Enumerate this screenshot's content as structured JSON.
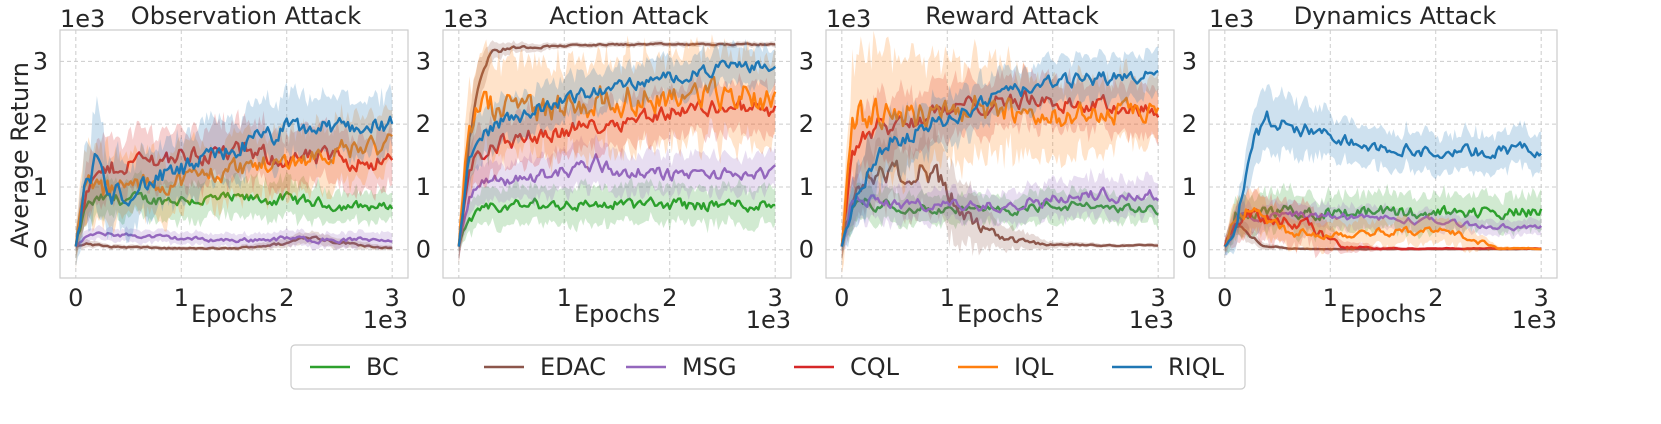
{
  "chart_data": {
    "type": "line",
    "ylabel": "Average Return",
    "xlabel": "Epochs",
    "x_multiplier": "1e3",
    "y_multiplier": "1e3",
    "xlim": [
      -0.15,
      3.15
    ],
    "ylim": [
      -0.45,
      3.5
    ],
    "xticks": [
      0,
      1,
      2,
      3
    ],
    "yticks": [
      0,
      1,
      2,
      3
    ],
    "grid": true,
    "legend": {
      "placement": "bottom-center",
      "entries": [
        "BC",
        "EDAC",
        "MSG",
        "CQL",
        "IQL",
        "RIQL"
      ]
    },
    "colors": {
      "BC": "#2ca02c",
      "EDAC": "#8c564b",
      "MSG": "#9467bd",
      "CQL": "#d62728",
      "IQL": "#ff7f0e",
      "RIQL": "#1f77b4"
    },
    "panels": [
      {
        "title": "Observation Attack",
        "series": [
          {
            "name": "BC",
            "x": [
              0,
              0.1,
              0.25,
              0.5,
              1,
              1.5,
              2,
              2.5,
              3
            ],
            "y": [
              0.05,
              0.7,
              0.8,
              0.8,
              0.8,
              0.8,
              0.8,
              0.7,
              0.68
            ],
            "band": [
              0.18,
              0.28,
              0.3,
              0.3,
              0.3,
              0.3,
              0.3,
              0.25,
              0.22
            ]
          },
          {
            "name": "EDAC",
            "x": [
              0,
              0.1,
              0.3,
              1,
              1.5,
              2,
              2.2,
              2.5,
              3
            ],
            "y": [
              0.05,
              0.1,
              0.05,
              0.02,
              0.02,
              0.1,
              0.22,
              0.12,
              0.02
            ],
            "band": [
              0.05,
              0.06,
              0.04,
              0.03,
              0.03,
              0.08,
              0.1,
              0.08,
              0.03
            ]
          },
          {
            "name": "MSG",
            "x": [
              0,
              0.1,
              0.3,
              1,
              1.5,
              2,
              2.5,
              3
            ],
            "y": [
              0.05,
              0.22,
              0.25,
              0.18,
              0.15,
              0.18,
              0.15,
              0.18
            ],
            "band": [
              0.05,
              0.1,
              0.1,
              0.1,
              0.1,
              0.12,
              0.12,
              0.12
            ]
          },
          {
            "name": "CQL",
            "x": [
              0,
              0.1,
              0.25,
              0.5,
              1,
              1.5,
              2,
              2.5,
              3
            ],
            "y": [
              0.05,
              0.9,
              1.2,
              1.4,
              1.5,
              1.55,
              1.45,
              1.45,
              1.4
            ],
            "band": [
              0.2,
              0.45,
              0.5,
              0.45,
              0.45,
              0.45,
              0.45,
              0.45,
              0.45
            ]
          },
          {
            "name": "IQL",
            "x": [
              0,
              0.1,
              0.25,
              0.5,
              1,
              1.5,
              2,
              2.5,
              3
            ],
            "y": [
              0.05,
              1.2,
              0.9,
              1.0,
              1.1,
              1.3,
              1.4,
              1.6,
              1.65
            ],
            "band": [
              0.3,
              0.6,
              0.6,
              0.5,
              0.5,
              0.5,
              0.5,
              0.5,
              0.5
            ]
          },
          {
            "name": "RIQL",
            "x": [
              0,
              0.1,
              0.2,
              0.3,
              0.5,
              1,
              1.5,
              2,
              2.5,
              3
            ],
            "y": [
              0.05,
              1.05,
              1.5,
              0.8,
              0.95,
              1.25,
              1.6,
              1.9,
              1.95,
              2.0
            ],
            "band": [
              0.3,
              0.65,
              0.8,
              0.6,
              0.5,
              0.5,
              0.5,
              0.5,
              0.45,
              0.45
            ]
          }
        ]
      },
      {
        "title": "Action Attack",
        "series": [
          {
            "name": "BC",
            "x": [
              0,
              0.1,
              0.3,
              0.5,
              1,
              1.5,
              2,
              2.5,
              3
            ],
            "y": [
              0.05,
              0.5,
              0.65,
              0.7,
              0.72,
              0.72,
              0.72,
              0.72,
              0.72
            ],
            "band": [
              0.1,
              0.25,
              0.28,
              0.3,
              0.3,
              0.3,
              0.3,
              0.3,
              0.3
            ]
          },
          {
            "name": "EDAC",
            "x": [
              0,
              0.1,
              0.2,
              0.3,
              0.5,
              1,
              1.5,
              2,
              2.5,
              3
            ],
            "y": [
              0.05,
              1.8,
              2.8,
              3.15,
              3.22,
              3.25,
              3.27,
              3.27,
              3.27,
              3.27
            ],
            "band": [
              0.2,
              0.5,
              0.35,
              0.15,
              0.08,
              0.04,
              0.04,
              0.04,
              0.04,
              0.04
            ]
          },
          {
            "name": "MSG",
            "x": [
              0,
              0.1,
              0.3,
              0.5,
              1,
              1.3,
              1.5,
              2,
              2.5,
              3
            ],
            "y": [
              0.05,
              0.9,
              1.1,
              1.1,
              1.25,
              1.4,
              1.25,
              1.2,
              1.2,
              1.2
            ],
            "band": [
              0.2,
              0.3,
              0.3,
              0.3,
              0.35,
              0.4,
              0.35,
              0.3,
              0.3,
              0.3
            ]
          },
          {
            "name": "CQL",
            "x": [
              0,
              0.1,
              0.25,
              0.5,
              1,
              1.5,
              2,
              2.5,
              3
            ],
            "y": [
              0.05,
              1.35,
              1.6,
              1.75,
              1.9,
              2.05,
              2.2,
              2.3,
              2.2
            ],
            "band": [
              0.25,
              0.45,
              0.45,
              0.4,
              0.4,
              0.4,
              0.4,
              0.4,
              0.4
            ]
          },
          {
            "name": "IQL",
            "x": [
              0,
              0.1,
              0.25,
              0.5,
              1,
              1.5,
              2,
              2.5,
              3
            ],
            "y": [
              0.05,
              2.1,
              2.2,
              2.2,
              2.3,
              2.4,
              2.45,
              2.45,
              2.45
            ],
            "band": [
              0.3,
              0.75,
              0.8,
              0.75,
              0.7,
              0.7,
              0.7,
              0.7,
              0.7
            ]
          },
          {
            "name": "RIQL",
            "x": [
              0,
              0.1,
              0.25,
              0.5,
              1,
              1.5,
              2,
              2.5,
              3
            ],
            "y": [
              0.05,
              1.55,
              1.9,
              2.1,
              2.4,
              2.6,
              2.75,
              2.9,
              2.95
            ],
            "band": [
              0.2,
              0.4,
              0.4,
              0.35,
              0.35,
              0.3,
              0.3,
              0.3,
              0.3
            ]
          }
        ]
      },
      {
        "title": "Reward Attack",
        "series": [
          {
            "name": "BC",
            "x": [
              0,
              0.1,
              0.25,
              0.5,
              1,
              1.5,
              2,
              2.5,
              3
            ],
            "y": [
              0.05,
              0.75,
              0.75,
              0.7,
              0.65,
              0.62,
              0.7,
              0.68,
              0.62
            ],
            "band": [
              0.2,
              0.3,
              0.28,
              0.25,
              0.22,
              0.22,
              0.25,
              0.22,
              0.2
            ]
          },
          {
            "name": "EDAC",
            "x": [
              0,
              0.1,
              0.25,
              0.5,
              0.8,
              1.0,
              1.2,
              1.5,
              2,
              2.5,
              3
            ],
            "y": [
              0.05,
              0.8,
              1.25,
              1.2,
              1.35,
              0.9,
              0.45,
              0.15,
              0.08,
              0.07,
              0.07
            ],
            "band": [
              0.2,
              0.4,
              0.5,
              0.5,
              0.6,
              0.6,
              0.5,
              0.2,
              0.05,
              0.03,
              0.03
            ]
          },
          {
            "name": "MSG",
            "x": [
              0,
              0.1,
              0.25,
              0.5,
              1,
              1.5,
              2,
              2.5,
              3
            ],
            "y": [
              0.05,
              0.85,
              0.8,
              0.72,
              0.7,
              0.72,
              0.8,
              0.9,
              0.85
            ],
            "band": [
              0.2,
              0.35,
              0.3,
              0.3,
              0.25,
              0.25,
              0.3,
              0.3,
              0.3
            ]
          },
          {
            "name": "CQL",
            "x": [
              0,
              0.1,
              0.25,
              0.5,
              1,
              1.5,
              2,
              2.5,
              3
            ],
            "y": [
              0.05,
              1.6,
              1.95,
              2.0,
              2.2,
              2.4,
              2.35,
              2.3,
              2.25
            ],
            "band": [
              0.3,
              0.5,
              0.5,
              0.5,
              0.45,
              0.4,
              0.4,
              0.4,
              0.4
            ]
          },
          {
            "name": "IQL",
            "x": [
              0,
              0.1,
              0.25,
              0.5,
              1,
              1.5,
              2,
              2.5,
              3
            ],
            "y": [
              0.05,
              1.9,
              2.2,
              2.2,
              2.25,
              2.2,
              2.15,
              2.15,
              2.2
            ],
            "band": [
              0.4,
              0.9,
              1.0,
              0.95,
              0.8,
              0.7,
              0.6,
              0.55,
              0.5
            ]
          },
          {
            "name": "RIQL",
            "x": [
              0,
              0.1,
              0.25,
              0.5,
              1,
              1.5,
              2,
              2.5,
              3
            ],
            "y": [
              0.05,
              0.6,
              1.3,
              1.75,
              2.1,
              2.45,
              2.65,
              2.75,
              2.75
            ],
            "band": [
              0.1,
              0.4,
              0.5,
              0.45,
              0.4,
              0.35,
              0.35,
              0.35,
              0.35
            ]
          }
        ]
      },
      {
        "title": "Dynamics Attack",
        "series": [
          {
            "name": "BC",
            "x": [
              0,
              0.1,
              0.25,
              0.5,
              1,
              1.5,
              2,
              2.5,
              3
            ],
            "y": [
              0.05,
              0.55,
              0.58,
              0.6,
              0.6,
              0.6,
              0.6,
              0.6,
              0.6
            ],
            "band": [
              0.15,
              0.28,
              0.3,
              0.3,
              0.3,
              0.3,
              0.3,
              0.28,
              0.28
            ]
          },
          {
            "name": "EDAC",
            "x": [
              0,
              0.1,
              0.2,
              0.35,
              0.6,
              1,
              1.5,
              2,
              2.5,
              3
            ],
            "y": [
              0.05,
              0.35,
              0.3,
              0.08,
              0.02,
              0.01,
              0.01,
              0.01,
              0.01,
              0.01
            ],
            "band": [
              0.05,
              0.15,
              0.15,
              0.05,
              0.02,
              0.01,
              0.01,
              0.01,
              0.01,
              0.01
            ]
          },
          {
            "name": "MSG",
            "x": [
              0,
              0.1,
              0.25,
              0.5,
              1,
              1.5,
              2,
              2.5,
              3
            ],
            "y": [
              0.05,
              0.5,
              0.55,
              0.55,
              0.55,
              0.5,
              0.45,
              0.38,
              0.35
            ],
            "band": [
              0.15,
              0.2,
              0.2,
              0.2,
              0.18,
              0.18,
              0.15,
              0.12,
              0.12
            ]
          },
          {
            "name": "CQL",
            "x": [
              0,
              0.1,
              0.25,
              0.5,
              0.7,
              0.9,
              1.1,
              1.5,
              2,
              2.5,
              3
            ],
            "y": [
              0.05,
              0.45,
              0.55,
              0.5,
              0.45,
              0.25,
              0.05,
              0.02,
              0.02,
              0.02,
              0.02
            ],
            "band": [
              0.1,
              0.3,
              0.35,
              0.35,
              0.35,
              0.3,
              0.1,
              0.03,
              0.02,
              0.02,
              0.02
            ]
          },
          {
            "name": "IQL",
            "x": [
              0,
              0.1,
              0.25,
              0.4,
              0.6,
              1.0,
              1.5,
              2.0,
              2.3,
              2.6,
              3
            ],
            "y": [
              0.05,
              0.5,
              0.7,
              0.45,
              0.3,
              0.25,
              0.3,
              0.3,
              0.2,
              0.02,
              0.02
            ],
            "band": [
              0.1,
              0.3,
              0.35,
              0.3,
              0.25,
              0.2,
              0.2,
              0.2,
              0.18,
              0.03,
              0.02
            ]
          },
          {
            "name": "RIQL",
            "x": [
              0,
              0.1,
              0.25,
              0.4,
              0.6,
              1,
              1.5,
              2,
              2.5,
              3
            ],
            "y": [
              0.05,
              0.3,
              1.7,
              2.0,
              1.95,
              1.8,
              1.65,
              1.55,
              1.55,
              1.6
            ],
            "band": [
              0.1,
              0.3,
              0.45,
              0.5,
              0.45,
              0.35,
              0.3,
              0.3,
              0.3,
              0.3
            ]
          }
        ]
      }
    ]
  }
}
